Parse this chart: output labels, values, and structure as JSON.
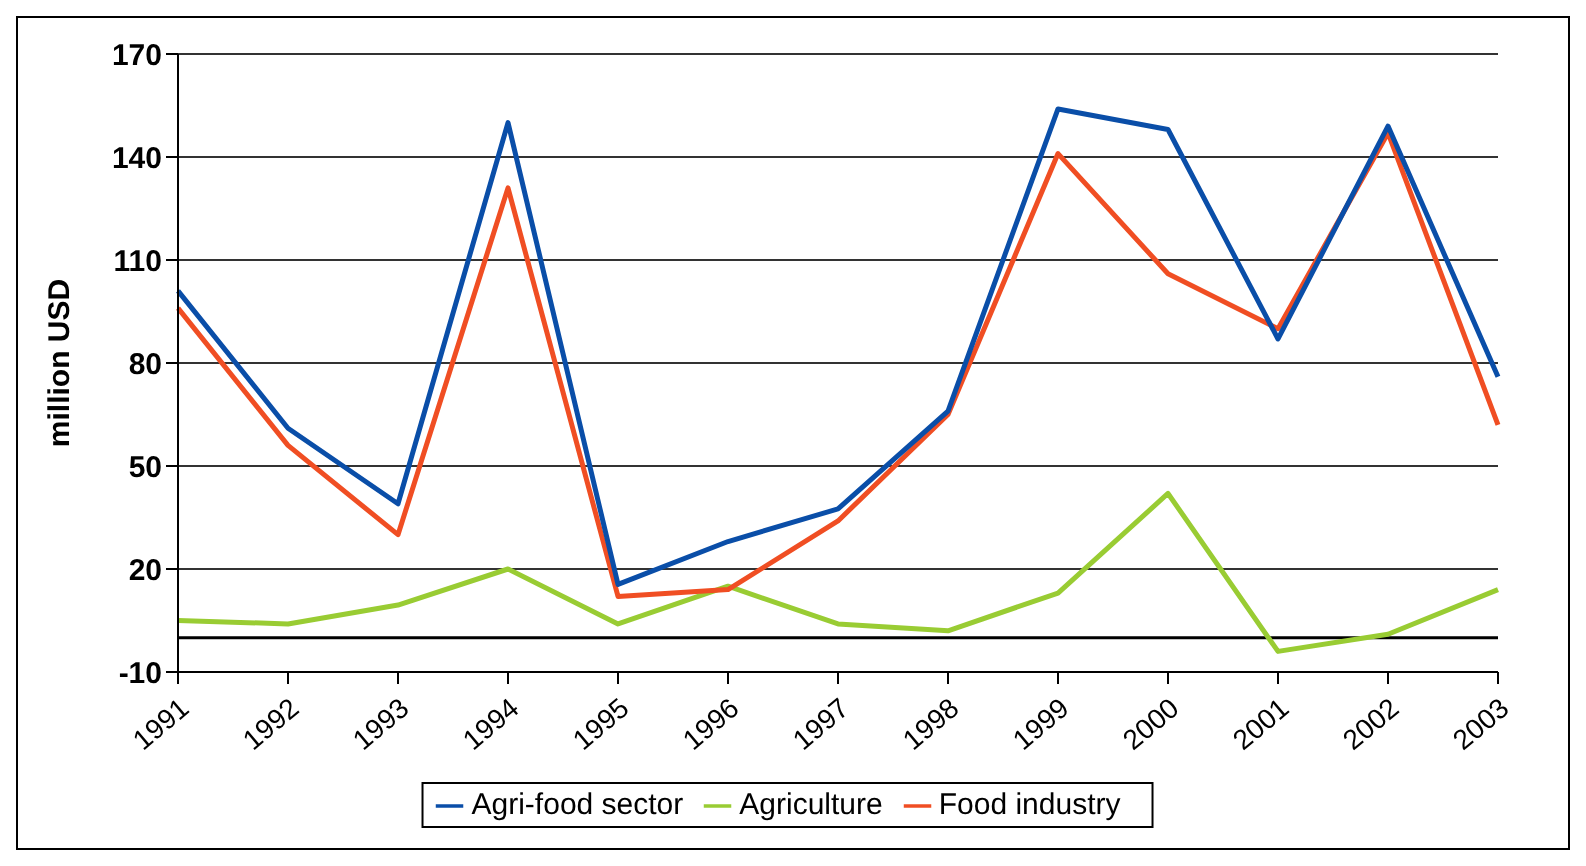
{
  "chart_data": {
    "type": "line",
    "ylabel": "million USD",
    "categories": [
      "1991",
      "1992",
      "1993",
      "1994",
      "1995",
      "1996",
      "1997",
      "1998",
      "1999",
      "2000",
      "2001",
      "2002",
      "2003"
    ],
    "series": [
      {
        "name": "Agriculture",
        "color": "#99cc33",
        "values": [
          5,
          4,
          9.5,
          20,
          4,
          15,
          4,
          2,
          13,
          42,
          -4,
          1,
          14
        ]
      },
      {
        "name": "Food industry",
        "color": "#f04e23",
        "values": [
          96,
          56,
          30,
          131,
          12,
          14,
          34,
          65,
          141,
          106,
          90,
          147,
          62
        ]
      },
      {
        "name": "Agri-food sector",
        "color": "#0a4ea8",
        "values": [
          101,
          61,
          39,
          150,
          15.5,
          28,
          37.5,
          66,
          154,
          148,
          87,
          149,
          76
        ]
      }
    ],
    "ylim": [
      -10,
      170
    ],
    "yticks": [
      -10,
      20,
      50,
      80,
      110,
      140,
      170
    ],
    "grid": "y",
    "legend": "bottom",
    "marker": "none",
    "line_style": "solid",
    "ref_lines": [
      {
        "axis": "y",
        "value": 0,
        "color": "#000000"
      }
    ]
  }
}
